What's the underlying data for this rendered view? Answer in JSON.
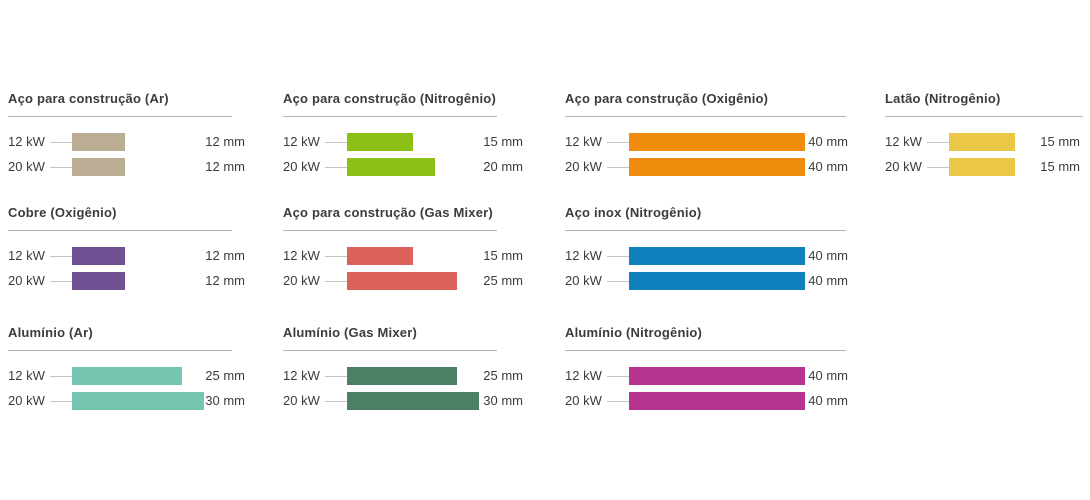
{
  "chart_data": {
    "type": "bar",
    "orientation": "horizontal",
    "value_unit": "mm",
    "value_range": [
      0,
      40
    ],
    "power_levels": [
      "12 kW",
      "20 kW"
    ],
    "text_color": "#3c3c3c",
    "divider_color": "#b3b3b3",
    "panel_rows": [
      [
        {
          "title": "Aço para construção (Ar)",
          "color": "#bbae95",
          "bars": [
            {
              "label": "12 kW",
              "value": 12,
              "value_label": "12 mm"
            },
            {
              "label": "20 kW",
              "value": 12,
              "value_label": "12 mm"
            }
          ]
        },
        {
          "title": "Aço para construção (Nitrogênio)",
          "color": "#8cc014",
          "bars": [
            {
              "label": "12 kW",
              "value": 15,
              "value_label": "15 mm"
            },
            {
              "label": "20 kW",
              "value": 20,
              "value_label": "20 mm"
            }
          ]
        },
        {
          "title": "Aço para construção (Oxigênio)",
          "color": "#f08c0d",
          "bars": [
            {
              "label": "12 kW",
              "value": 40,
              "value_label": "40 mm"
            },
            {
              "label": "20 kW",
              "value": 40,
              "value_label": "40 mm"
            }
          ]
        },
        {
          "title": "Latão (Nitrogênio)",
          "color": "#ebc748",
          "bars": [
            {
              "label": "12 kW",
              "value": 15,
              "value_label": "15 mm"
            },
            {
              "label": "20 kW",
              "value": 15,
              "value_label": "15 mm"
            }
          ]
        }
      ],
      [
        {
          "title": "Cobre (Oxigênio)",
          "color": "#6f5092",
          "bars": [
            {
              "label": "12 kW",
              "value": 12,
              "value_label": "12 mm"
            },
            {
              "label": "20 kW",
              "value": 12,
              "value_label": "12 mm"
            }
          ]
        },
        {
          "title": "Aço para construção (Gas Mixer)",
          "color": "#da625a",
          "bars": [
            {
              "label": "12 kW",
              "value": 15,
              "value_label": "15 mm"
            },
            {
              "label": "20 kW",
              "value": 25,
              "value_label": "25 mm"
            }
          ]
        },
        {
          "title": "Aço inox (Nitrogênio)",
          "color": "#1081be",
          "bars": [
            {
              "label": "12 kW",
              "value": 40,
              "value_label": "40 mm"
            },
            {
              "label": "20 kW",
              "value": 40,
              "value_label": "40 mm"
            }
          ]
        }
      ],
      [
        {
          "title": "Alumínio (Ar)",
          "color": "#75c6b1",
          "bars": [
            {
              "label": "12 kW",
              "value": 25,
              "value_label": "25 mm"
            },
            {
              "label": "20 kW",
              "value": 30,
              "value_label": "30 mm"
            }
          ]
        },
        {
          "title": "Alumínio (Gas Mixer)",
          "color": "#4d7f67",
          "bars": [
            {
              "label": "12 kW",
              "value": 25,
              "value_label": "25 mm"
            },
            {
              "label": "20 kW",
              "value": 30,
              "value_label": "30 mm"
            }
          ]
        },
        {
          "title": "Alumínio (Nitrogênio)",
          "color": "#b73390",
          "bars": [
            {
              "label": "12 kW",
              "value": 40,
              "value_label": "40 mm"
            },
            {
              "label": "20 kW",
              "value": 40,
              "value_label": "40 mm"
            }
          ]
        }
      ]
    ]
  }
}
